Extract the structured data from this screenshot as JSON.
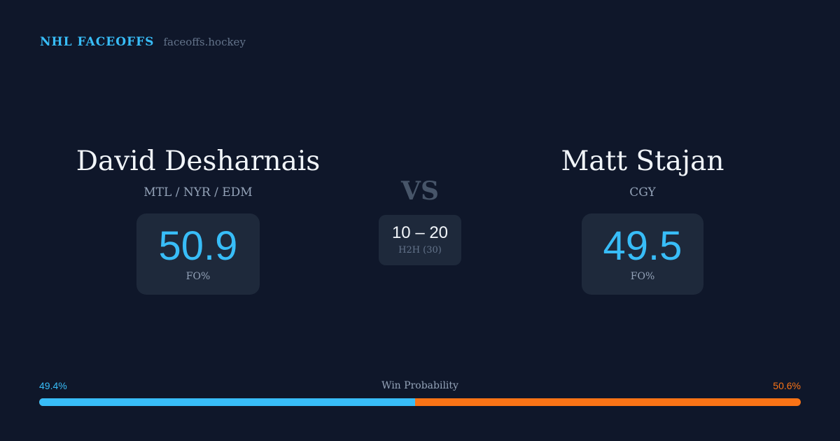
{
  "brand": {
    "name": "NHL FACEOFFS",
    "url": "faceoffs.hockey"
  },
  "player1": {
    "name": "David Desharnais",
    "teams": "MTL / NYR / EDM",
    "fo_pct": "50.9",
    "fo_label": "FO%"
  },
  "player2": {
    "name": "Matt Stajan",
    "teams": "CGY",
    "fo_pct": "49.5",
    "fo_label": "FO%"
  },
  "versus": {
    "label": "VS",
    "h2h_score": "10 – 20",
    "h2h_label": "H2H (30)"
  },
  "win_probability": {
    "label": "Win Probability",
    "left": "49.4%",
    "right": "50.6%",
    "left_value": 49.4,
    "colors": {
      "left": "#38bdf8",
      "right": "#f97316"
    }
  }
}
